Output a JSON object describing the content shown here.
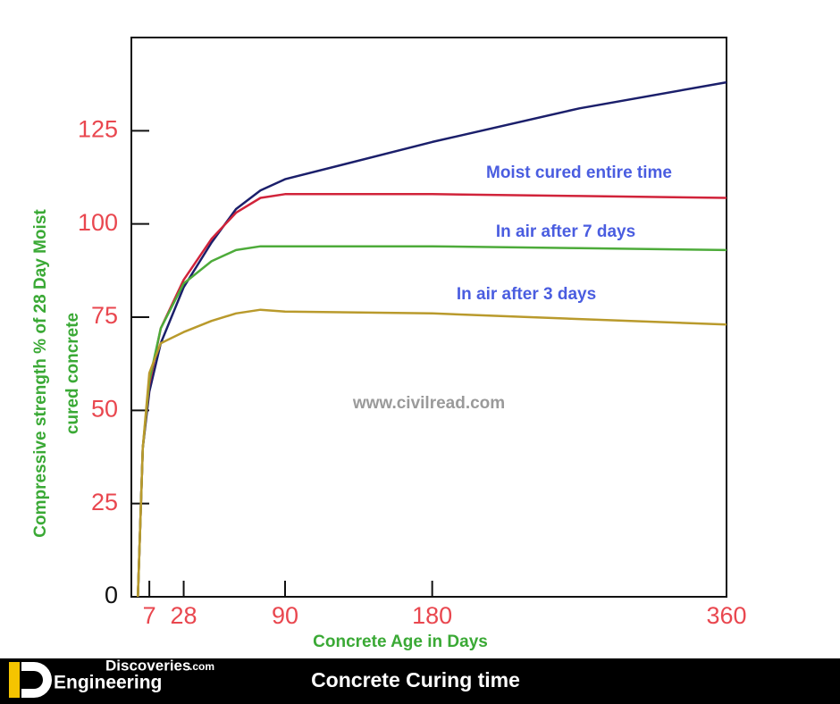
{
  "chart_data": {
    "type": "line",
    "y_label": [
      "Compressive strength  % of 28 Day Moist",
      "cured concrete"
    ],
    "x_label": "Concrete Age in Days",
    "watermark": "www.civilread.com",
    "x": [
      0,
      3,
      7,
      14,
      28,
      45,
      60,
      75,
      90,
      180,
      270,
      360
    ],
    "series": [
      {
        "color": "#1b1f6b",
        "values": [
          0,
          40,
          55,
          68,
          83,
          95,
          104,
          109,
          112,
          122,
          131,
          138
        ]
      },
      {
        "name": "Moist cured entire time",
        "color": "#d1233a",
        "values": [
          0,
          40,
          57,
          72,
          85,
          96,
          103,
          107,
          108,
          108,
          107.5,
          107
        ]
      },
      {
        "name": "In air after 7 days",
        "color": "#4dab3a",
        "values": [
          0,
          40,
          58,
          72,
          84,
          90,
          93,
          94,
          94,
          94,
          93.5,
          93
        ]
      },
      {
        "name": "In air after 3  days",
        "color": "#b99a2c",
        "values": [
          0,
          40,
          60,
          68,
          71,
          74,
          76,
          77,
          76.5,
          76,
          74.5,
          73
        ]
      }
    ],
    "xlim": [
      -4,
      360
    ],
    "xticks": [
      7,
      28,
      90,
      180,
      360
    ],
    "ylim": [
      0,
      150
    ],
    "yticks": [
      0,
      25,
      50,
      75,
      100,
      125
    ]
  },
  "footer": {
    "brand_top": "Discoveries",
    "brand_domain": ".com",
    "brand_bottom": "Engineering",
    "title": "Concrete Curing time"
  }
}
